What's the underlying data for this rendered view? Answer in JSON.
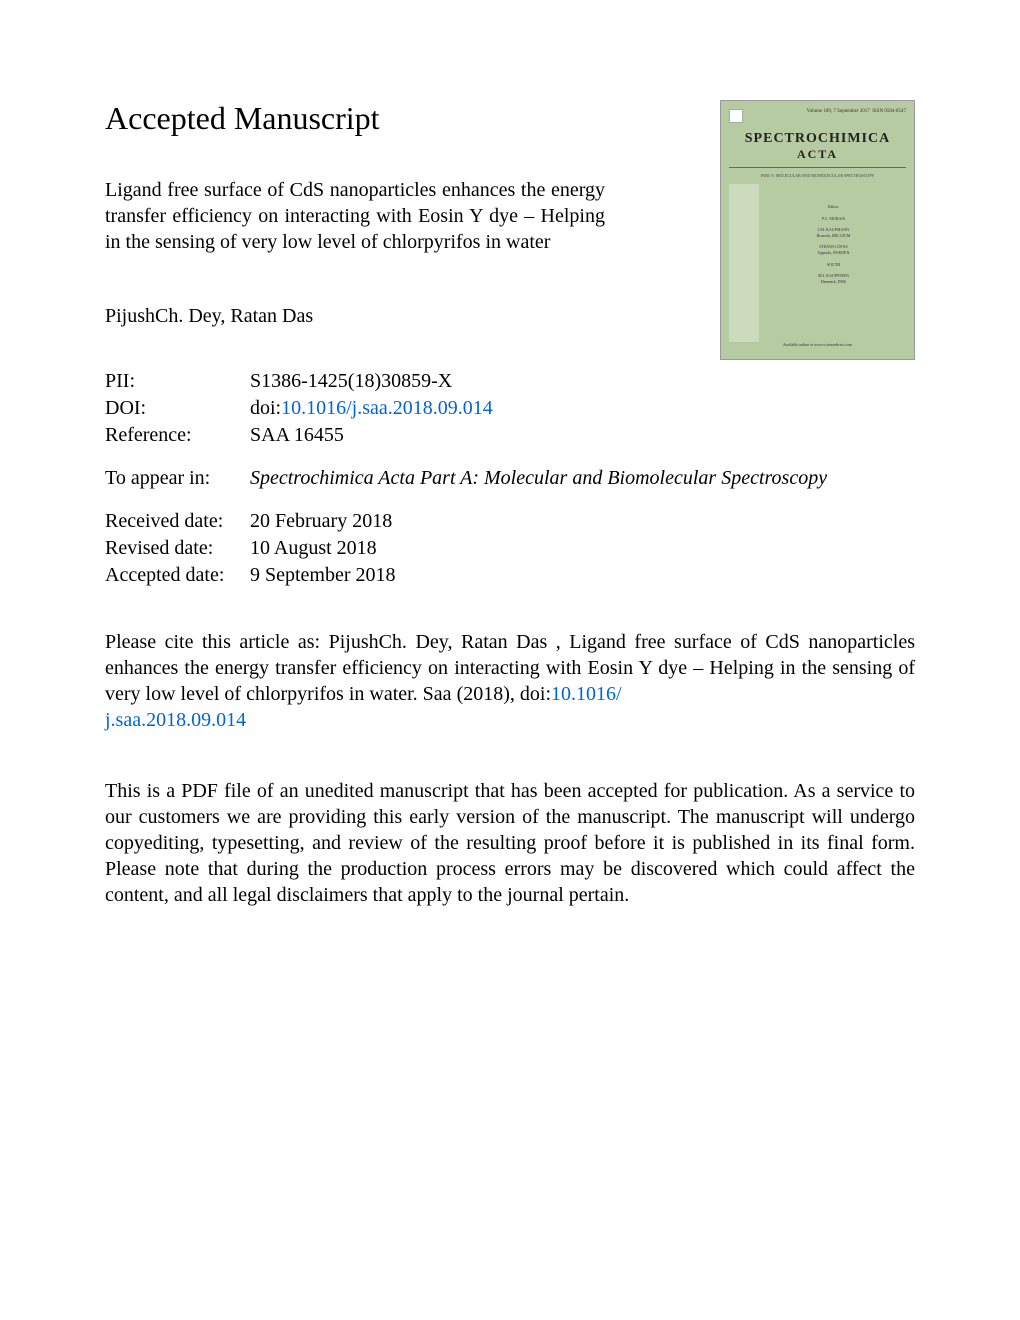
{
  "page": {
    "heading": "Accepted Manuscript",
    "article_title": "Ligand free surface of CdS nanoparticles enhances the energy transfer efficiency on interacting with Eosin Y dye – Helping in the sensing of very low level of chlorpyrifos in water",
    "authors": "PijushCh. Dey, Ratan Das",
    "meta": {
      "pii_label": "PII:",
      "pii_value": "S1386-1425(18)30859-X",
      "doi_label": "DOI:",
      "doi_prefix": "doi:",
      "doi_link": "10.1016/j.saa.2018.09.014",
      "reference_label": "Reference:",
      "reference_value": "SAA 16455",
      "appear_label": "To appear in:",
      "appear_value": "Spectrochimica Acta Part A: Molecular and Biomolecular Spectroscopy",
      "received_label": "Received date:",
      "received_value": "20 February 2018",
      "revised_label": "Revised date:",
      "revised_value": "10 August 2018",
      "accepted_label": "Accepted date:",
      "accepted_value": "9 September 2018"
    },
    "citation_text_1": "Please cite this article as: PijushCh. Dey, Ratan Das , Ligand free surface of CdS nanoparticles enhances the energy transfer efficiency on interacting with Eosin Y dye – Helping in the sensing of very low level of chlorpyrifos in water. Saa (2018), doi:",
    "citation_link_1": "10.1016/",
    "citation_link_2": "j.saa.2018.09.014",
    "disclaimer": "This is a PDF file of an unedited manuscript that has been accepted for publication. As a service to our customers we are providing this early version of the manuscript. The manuscript will undergo copyediting, typesetting, and review of the resulting proof before it is published in its final form. Please note that during the production process errors may be discovered which could affect the content, and all legal disclaimers that apply to the journal pertain."
  },
  "cover": {
    "top_left": "",
    "top_right_vol": "Volume 189, 7 September 2017",
    "top_right_issn": "ISSN 0584-8547",
    "title": "SPECTROCHIMICA",
    "subtitle": "ACTA",
    "part_line": "PART A: MOLECULAR AND BIOMOLECULAR SPECTROSCOPY",
    "editor_heading": "Editor:",
    "editor1": "P.C. MORAIS",
    "editor2": "J.M. KAUFMANN",
    "editor3": "Brussels, BELGIUM",
    "editor4": "STEFAN LÖFÅS",
    "editor5": "Uppsala, SWEDEN",
    "editor6": "SOUTH",
    "editor7": "M.J. KAUPPINEN",
    "editor8": "Denmark, DNK",
    "footer": "Available online at www.sciencedirect.com"
  },
  "colors": {
    "background": "#ffffff",
    "text": "#000000",
    "link": "#0066cc",
    "cover_bg": "#b7cba2",
    "cover_border": "#999999"
  }
}
